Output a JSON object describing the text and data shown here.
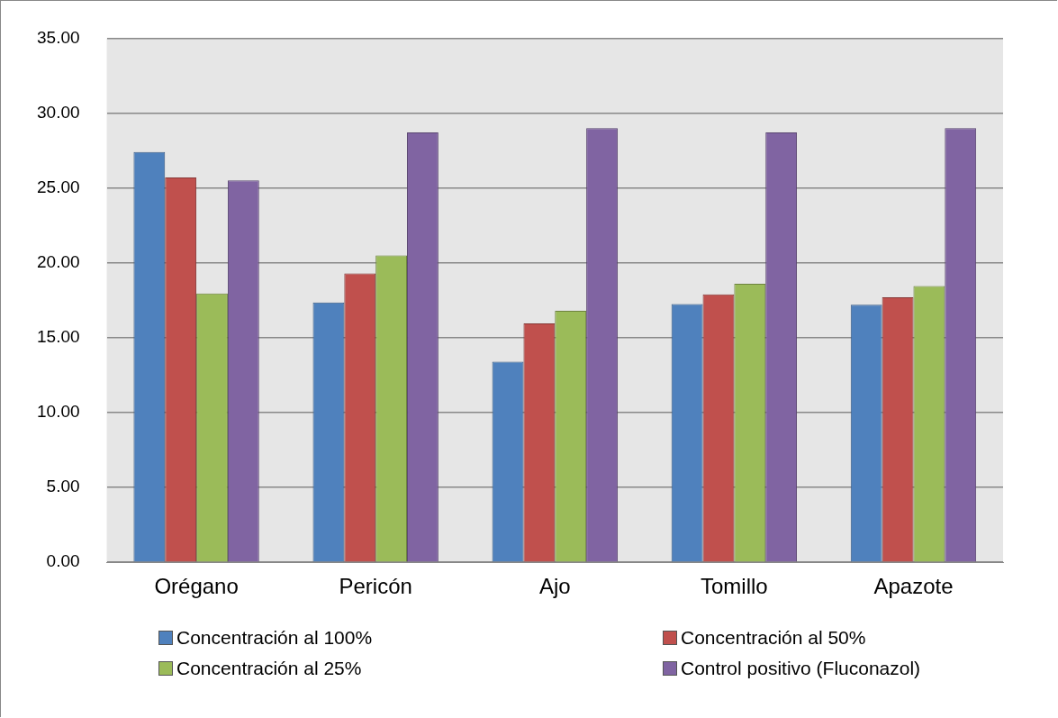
{
  "chart_data": {
    "type": "bar",
    "categories": [
      "Orégano",
      "Pericón",
      "Ajo",
      "Tomillo",
      "Apazote"
    ],
    "series": [
      {
        "name": "Concentración al 100%",
        "color": "#4f81bd",
        "values": [
          27.4,
          17.35,
          13.4,
          17.25,
          17.2
        ]
      },
      {
        "name": "Concentración al 50%",
        "color": "#c0504d",
        "values": [
          25.7,
          19.3,
          15.95,
          17.9,
          17.7
        ]
      },
      {
        "name": "Concentración al 25%",
        "color": "#9bbb59",
        "values": [
          17.95,
          20.5,
          16.8,
          18.6,
          18.45
        ]
      },
      {
        "name": "Control positivo (Fluconazol)",
        "color": "#8064a2",
        "values": [
          25.5,
          28.7,
          29.0,
          28.7,
          29.0
        ]
      }
    ],
    "ylim": [
      0,
      35
    ],
    "yticks": [
      {
        "value": 0,
        "label": "0.00"
      },
      {
        "value": 5,
        "label": "5.00"
      },
      {
        "value": 10,
        "label": "10.00"
      },
      {
        "value": 15,
        "label": "15.00"
      },
      {
        "value": 20,
        "label": "20.00"
      },
      {
        "value": 25,
        "label": "25.00"
      },
      {
        "value": 30,
        "label": "30.00"
      },
      {
        "value": 35,
        "label": "35.00"
      }
    ],
    "grid": "y",
    "legend": "bottom"
  }
}
